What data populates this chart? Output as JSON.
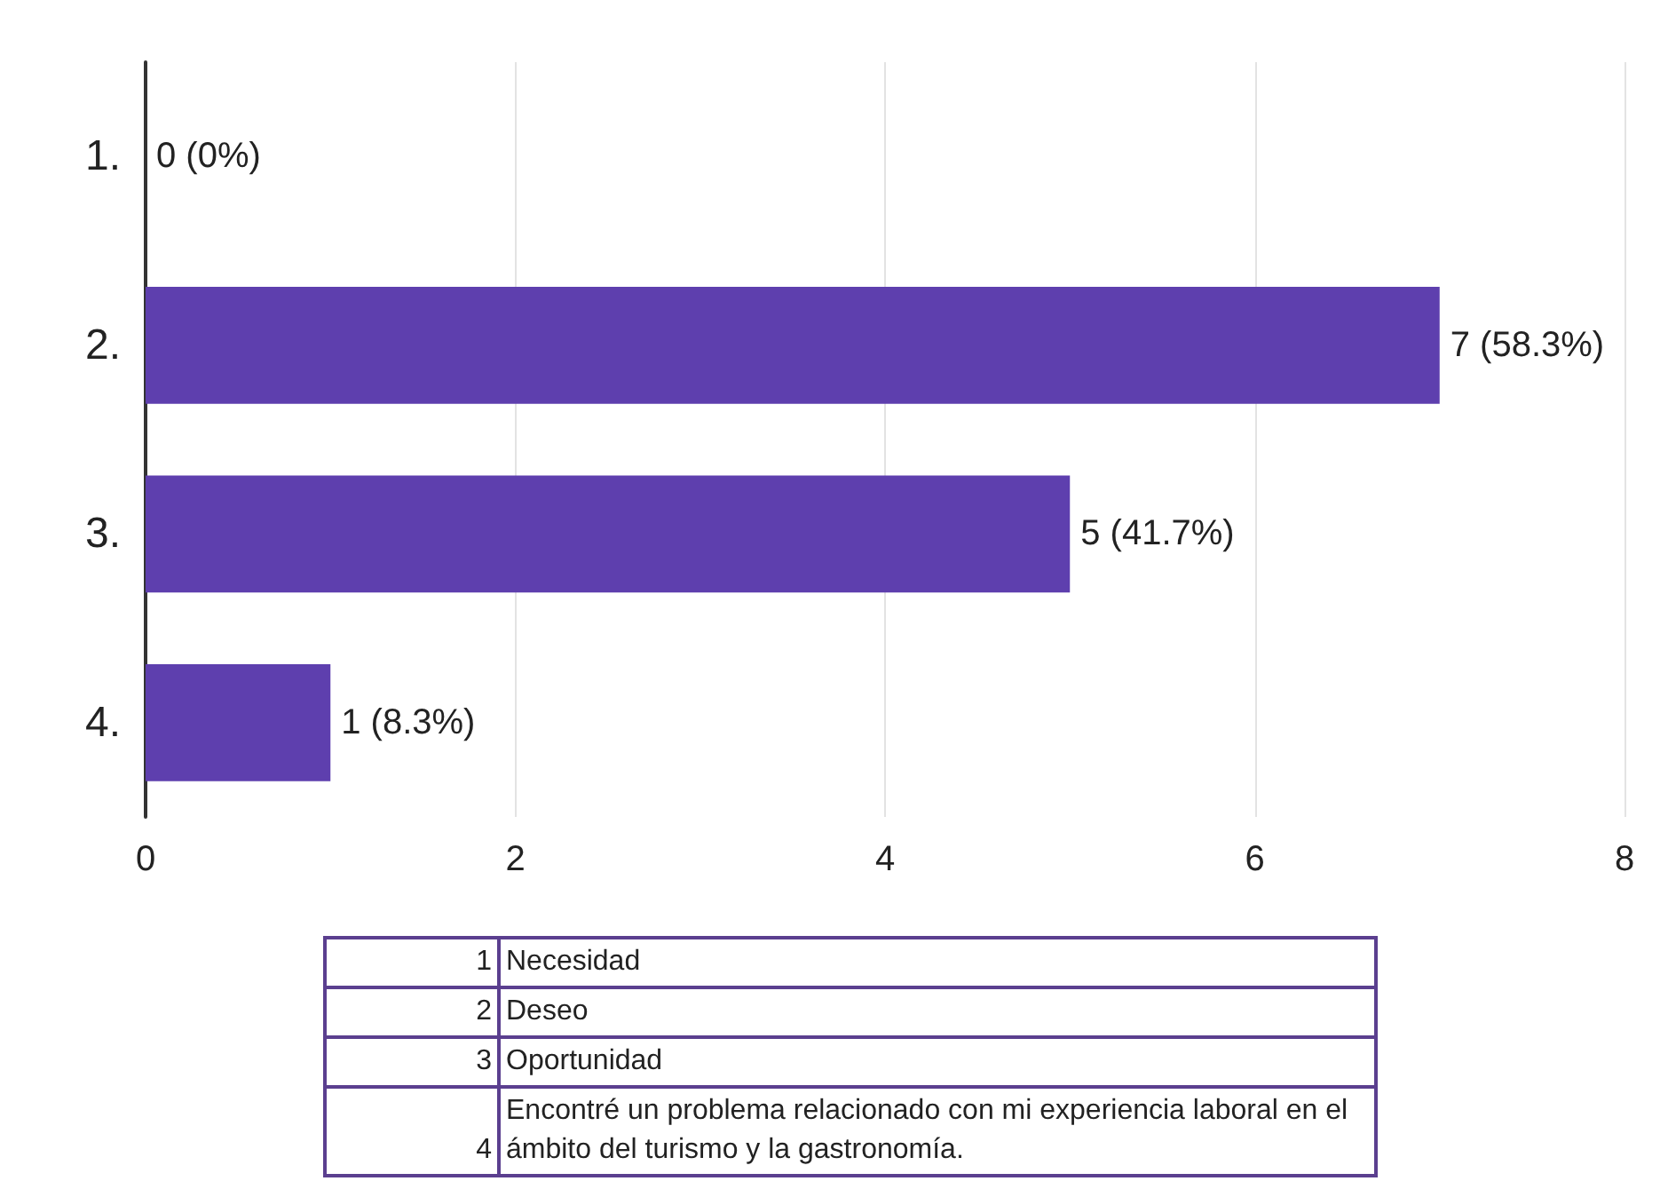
{
  "chart_data": {
    "type": "bar",
    "orientation": "horizontal",
    "categories": [
      "1.",
      "2.",
      "3.",
      "4."
    ],
    "values": [
      0,
      7,
      5,
      1
    ],
    "value_labels": [
      "0 (0%)",
      "7 (58.3%)",
      "5 (41.7%)",
      "1 (8.3%)"
    ],
    "color": "#5e3fae",
    "xlim": [
      0,
      8
    ],
    "xticks": [
      0,
      2,
      4,
      6,
      8
    ],
    "grid": "x",
    "annotations": [
      "1 Necesidad",
      "2 Deseo",
      "3 Oportunidad",
      "4 Encontré un problema relacionado con mi experiencia laboral en el ámbito del turismo y la gastronomía."
    ]
  }
}
